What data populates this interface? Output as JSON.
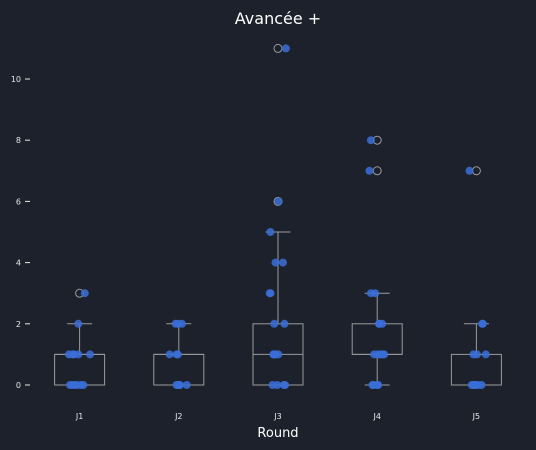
{
  "chart_data": {
    "type": "box",
    "title": "Avancée +",
    "xlabel": "Round",
    "ylabel": "",
    "categories": [
      "J1",
      "J2",
      "J3",
      "J4",
      "J5"
    ],
    "yticks": [
      0,
      2,
      4,
      6,
      8,
      10
    ],
    "ylim": [
      -0.5,
      11.5
    ],
    "boxes": [
      {
        "category": "J1",
        "q1": 0,
        "median": 1,
        "q3": 1,
        "whisker_low": 0,
        "whisker_high": 2,
        "fliers": [
          3
        ]
      },
      {
        "category": "J2",
        "q1": 0,
        "median": 1,
        "q3": 1,
        "whisker_low": 0,
        "whisker_high": 2,
        "fliers": []
      },
      {
        "category": "J3",
        "q1": 0,
        "median": 1,
        "q3": 2,
        "whisker_low": 0,
        "whisker_high": 5,
        "fliers": [
          6,
          11
        ]
      },
      {
        "category": "J4",
        "q1": 1,
        "median": 1,
        "q3": 2,
        "whisker_low": 0,
        "whisker_high": 3,
        "fliers": [
          7,
          8
        ]
      },
      {
        "category": "J5",
        "q1": 0,
        "median": 0,
        "q3": 1,
        "whisker_low": 0,
        "whisker_high": 2,
        "fliers": [
          7
        ]
      }
    ],
    "points": [
      {
        "category": "J1",
        "values": [
          0,
          0,
          0,
          0,
          0,
          0,
          1,
          1,
          1,
          1,
          1,
          2,
          3
        ]
      },
      {
        "category": "J2",
        "values": [
          0,
          0,
          0,
          0,
          0,
          1,
          1,
          1,
          2,
          2,
          2
        ]
      },
      {
        "category": "J3",
        "values": [
          0,
          0,
          0,
          0,
          1,
          1,
          1,
          1,
          1,
          2,
          2,
          3,
          3,
          4,
          4,
          5,
          6,
          11
        ]
      },
      {
        "category": "J4",
        "values": [
          0,
          0,
          0,
          0,
          1,
          1,
          1,
          1,
          1,
          2,
          2,
          2,
          3,
          3,
          7,
          8
        ]
      },
      {
        "category": "J5",
        "values": [
          0,
          0,
          0,
          0,
          0,
          0,
          1,
          1,
          1,
          2,
          2,
          7
        ]
      }
    ],
    "colors": {
      "background": "#1c212c",
      "point": "#3a6fd8",
      "box": "#9a9a9a",
      "text": "#ffffff"
    },
    "grid": false,
    "legend": "none"
  }
}
